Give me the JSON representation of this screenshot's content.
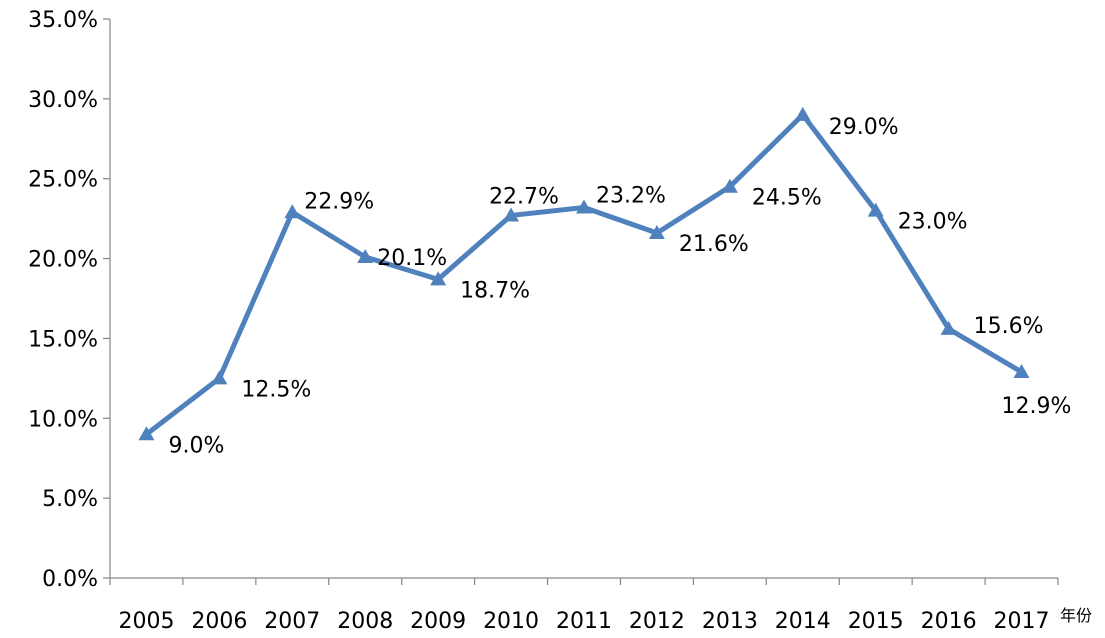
{
  "chart_data": {
    "type": "line",
    "title": "",
    "xlabel": "年份",
    "ylabel": "",
    "categories": [
      "2005",
      "2006",
      "2007",
      "2008",
      "2009",
      "2010",
      "2011",
      "2012",
      "2013",
      "2014",
      "2015",
      "2016",
      "2017"
    ],
    "series": [
      {
        "values": [
          9.0,
          12.5,
          22.9,
          20.1,
          18.7,
          22.7,
          23.2,
          21.6,
          24.5,
          29.0,
          23.0,
          15.6,
          12.9
        ],
        "labels": [
          "9.0%",
          "12.5%",
          "22.9%",
          "20.1%",
          "18.7%",
          "22.7%",
          "23.2%",
          "21.6%",
          "24.5%",
          "29.0%",
          "23.0%",
          "15.6%",
          "12.9%"
        ]
      }
    ],
    "y_ticks": [
      "0.0%",
      "5.0%",
      "10.0%",
      "15.0%",
      "20.0%",
      "25.0%",
      "30.0%",
      "35.0%"
    ],
    "ylim": [
      0,
      35
    ],
    "grid": false,
    "legend": "none",
    "marker": "triangle",
    "line_color": "#4f81bd"
  }
}
